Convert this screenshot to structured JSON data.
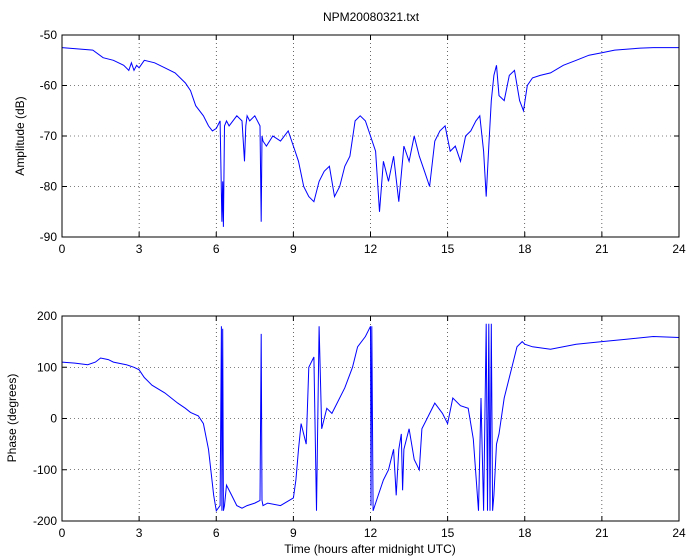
{
  "chart_data": [
    {
      "type": "line",
      "title": "NPM20080321.txt",
      "xlabel": "",
      "ylabel": "Amplitude (dB)",
      "xlim": [
        0,
        24
      ],
      "ylim": [
        -90,
        -50
      ],
      "xticks": [
        "0",
        "3",
        "6",
        "9",
        "12",
        "15",
        "18",
        "21",
        "24"
      ],
      "yticks": [
        "-50",
        "-60",
        "-70",
        "-80",
        "-90"
      ],
      "grid": true,
      "series": [
        {
          "color": "#0000ff",
          "x": [
            0,
            1.2,
            1.6,
            2.0,
            2.4,
            2.6,
            2.7,
            2.8,
            2.9,
            3.0,
            3.2,
            3.6,
            4.0,
            4.4,
            4.8,
            5.0,
            5.2,
            5.5,
            5.7,
            5.85,
            6.0,
            6.15,
            6.22,
            6.25,
            6.28,
            6.32,
            6.4,
            6.5,
            6.8,
            7.0,
            7.1,
            7.15,
            7.2,
            7.3,
            7.5,
            7.7,
            7.75,
            7.78,
            7.82,
            7.95,
            8.2,
            8.5,
            8.8,
            9.0,
            9.2,
            9.4,
            9.6,
            9.8,
            10.0,
            10.2,
            10.4,
            10.6,
            10.8,
            11.0,
            11.2,
            11.4,
            11.6,
            11.8,
            12.0,
            12.2,
            12.35,
            12.5,
            12.7,
            12.9,
            13.1,
            13.3,
            13.5,
            13.7,
            13.9,
            14.1,
            14.3,
            14.5,
            14.7,
            14.9,
            15.1,
            15.3,
            15.5,
            15.7,
            15.9,
            16.1,
            16.25,
            16.4,
            16.5,
            16.6,
            16.7,
            16.8,
            16.9,
            17.0,
            17.2,
            17.4,
            17.6,
            17.8,
            17.95,
            18.1,
            18.3,
            18.6,
            19.0,
            19.5,
            20.0,
            20.5,
            21.0,
            21.5,
            22.0,
            22.5,
            23.0,
            23.5,
            24.0
          ],
          "values": [
            -52.5,
            -53,
            -54.5,
            -55,
            -56,
            -57,
            -55.5,
            -57,
            -56,
            -56.5,
            -55,
            -55.5,
            -56.5,
            -57.5,
            -59.5,
            -61,
            -64,
            -66,
            -68,
            -69,
            -68.5,
            -67,
            -87,
            -79,
            -88,
            -68,
            -67,
            -68,
            -66,
            -67,
            -75,
            -68,
            -66,
            -67,
            -66,
            -68,
            -87,
            -70,
            -71,
            -72,
            -70,
            -71,
            -69,
            -72,
            -75,
            -80,
            -82,
            -83,
            -79,
            -77,
            -76,
            -82,
            -80,
            -76,
            -74,
            -67,
            -66,
            -67,
            -70,
            -73,
            -85,
            -75,
            -79,
            -74,
            -83,
            -72,
            -75,
            -70,
            -74,
            -77,
            -80,
            -71,
            -69,
            -68,
            -73,
            -72,
            -75,
            -70,
            -69,
            -67,
            -66,
            -73,
            -82,
            -72,
            -63,
            -58,
            -56,
            -62,
            -63,
            -58,
            -57,
            -63,
            -65,
            -60,
            -58.5,
            -58,
            -57.5,
            -56,
            -55,
            -54,
            -53.5,
            -53,
            -52.8,
            -52.6,
            -52.5,
            -52.5,
            -52.5
          ]
        }
      ]
    },
    {
      "type": "line",
      "title": "",
      "xlabel": "Time (hours after midnight UTC)",
      "ylabel": "Phase (degrees)",
      "xlim": [
        0,
        24
      ],
      "ylim": [
        -200,
        200
      ],
      "xticks": [
        "0",
        "3",
        "6",
        "9",
        "12",
        "15",
        "18",
        "21",
        "24"
      ],
      "yticks": [
        "200",
        "100",
        "0",
        "-100",
        "-200"
      ],
      "grid": true,
      "series": [
        {
          "color": "#0000ff",
          "x": [
            0,
            0.5,
            1.0,
            1.3,
            1.5,
            1.8,
            2.0,
            2.5,
            2.8,
            3.0,
            3.2,
            3.5,
            4.0,
            4.5,
            4.8,
            5.0,
            5.3,
            5.5,
            5.7,
            5.9,
            6.0,
            6.15,
            6.2,
            6.22,
            6.25,
            6.28,
            6.32,
            6.4,
            6.6,
            6.8,
            7.0,
            7.2,
            7.5,
            7.7,
            7.75,
            7.78,
            7.82,
            8.0,
            8.5,
            9.0,
            9.1,
            9.2,
            9.3,
            9.5,
            9.6,
            9.8,
            9.9,
            10.0,
            10.1,
            10.3,
            10.5,
            10.7,
            11.0,
            11.3,
            11.5,
            11.8,
            12.0,
            12.02,
            12.05,
            12.1,
            12.3,
            12.5,
            12.7,
            12.9,
            13.0,
            13.1,
            13.2,
            13.25,
            13.3,
            13.5,
            13.7,
            13.9,
            14.0,
            14.2,
            14.5,
            14.8,
            15.0,
            15.2,
            15.5,
            15.8,
            16.0,
            16.2,
            16.3,
            16.4,
            16.5,
            16.55,
            16.6,
            16.65,
            16.7,
            16.75,
            16.8,
            16.85,
            16.9,
            17.0,
            17.2,
            17.5,
            17.7,
            17.9,
            18.0,
            18.3,
            19.0,
            20.0,
            21.0,
            22.0,
            23.0,
            24.0
          ],
          "values": [
            110,
            108,
            105,
            110,
            118,
            115,
            110,
            105,
            100,
            95,
            80,
            65,
            50,
            30,
            20,
            12,
            5,
            -10,
            -60,
            -150,
            -180,
            -170,
            180,
            -180,
            175,
            -180,
            -170,
            -130,
            -150,
            -170,
            -175,
            -170,
            -165,
            -160,
            165,
            -160,
            -170,
            -165,
            -170,
            -155,
            -120,
            -60,
            -10,
            -50,
            100,
            120,
            -180,
            180,
            -20,
            20,
            10,
            30,
            60,
            100,
            140,
            160,
            180,
            -170,
            180,
            -180,
            -150,
            -120,
            -100,
            -60,
            -150,
            -60,
            -30,
            -140,
            -60,
            -20,
            -80,
            -100,
            -20,
            0,
            30,
            10,
            -10,
            40,
            25,
            20,
            -40,
            -180,
            40,
            -180,
            185,
            -180,
            185,
            -180,
            185,
            -180,
            -150,
            -100,
            -50,
            -30,
            40,
            100,
            140,
            150,
            145,
            140,
            135,
            145,
            150,
            155,
            160,
            158
          ]
        }
      ]
    }
  ]
}
